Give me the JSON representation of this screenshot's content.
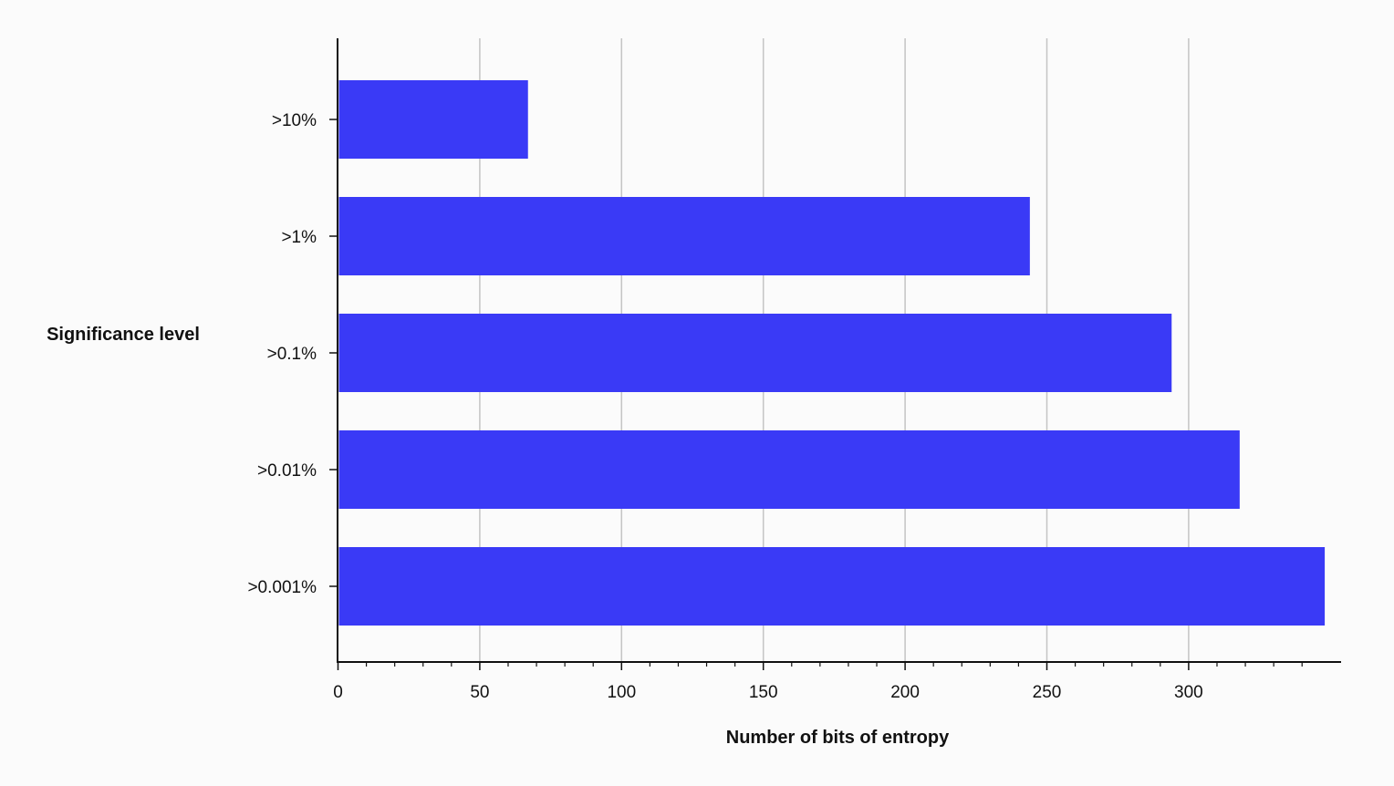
{
  "colors": {
    "bar": "#3a3af6",
    "grid": "#c4c4c4",
    "axis": "#111111",
    "background": "#fbfbfb"
  },
  "chart_data": {
    "type": "bar",
    "orientation": "horizontal",
    "categories": [
      ">10%",
      ">1%",
      ">0.1%",
      ">0.01%",
      ">0.001%"
    ],
    "values": [
      67,
      244,
      294,
      318,
      348
    ],
    "xlabel": "Number of bits of entropy",
    "ylabel": "Significance level",
    "xlim": [
      0,
      354
    ],
    "xticks": [
      0,
      50,
      100,
      150,
      200,
      250,
      300
    ],
    "minor_tick_step": 10,
    "grid": "vertical",
    "legend": "none"
  }
}
